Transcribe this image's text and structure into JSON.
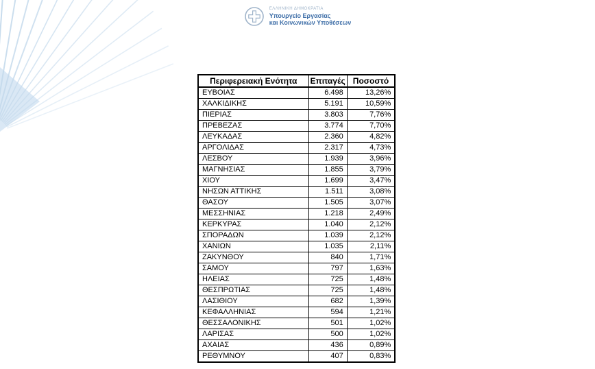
{
  "header": {
    "republic": "ΕΛΛΗΝΙΚΗ ΔΗΜΟΚΡΑΤΙΑ",
    "ministry_line1": "Υπουργείο Εργασίας",
    "ministry_line2": "και Κοινωνικών Υποθέσεων",
    "emblem_icon": "greek-coat-of-arms",
    "colors": {
      "republic_text": "#9fb4ca",
      "ministry_text": "#3f6fa8",
      "emblem": "#9fb4ca"
    }
  },
  "decor": {
    "stripe_color": "#c3d9ec",
    "wedge_color": "#d6e6f4"
  },
  "table": {
    "columns": [
      "Περιφερειακή Ενότητα",
      "Επιταγές",
      "Ποσοστό"
    ],
    "border_color": "#000000",
    "rows": [
      [
        "ΕΥΒΟΙΑΣ",
        "6.498",
        "13,26%"
      ],
      [
        "ΧΑΛΚΙΔΙΚΗΣ",
        "5.191",
        "10,59%"
      ],
      [
        "ΠΙΕΡΙΑΣ",
        "3.803",
        "7,76%"
      ],
      [
        "ΠΡΕΒΕΖΑΣ",
        "3.774",
        "7,70%"
      ],
      [
        "ΛΕΥΚΑΔΑΣ",
        "2.360",
        "4,82%"
      ],
      [
        "ΑΡΓΟΛΙΔΑΣ",
        "2.317",
        "4,73%"
      ],
      [
        "ΛΕΣΒΟΥ",
        "1.939",
        "3,96%"
      ],
      [
        "ΜΑΓΝΗΣΙΑΣ",
        "1.855",
        "3,79%"
      ],
      [
        "ΧΙΟΥ",
        "1.699",
        "3,47%"
      ],
      [
        "ΝΗΣΩΝ ΑΤΤΙΚΗΣ",
        "1.511",
        "3,08%"
      ],
      [
        "ΘΑΣΟΥ",
        "1.505",
        "3,07%"
      ],
      [
        "ΜΕΣΣΗΝΙΑΣ",
        "1.218",
        "2,49%"
      ],
      [
        "ΚΕΡΚΥΡΑΣ",
        "1.040",
        "2,12%"
      ],
      [
        "ΣΠΟΡΑΔΩΝ",
        "1.039",
        "2,12%"
      ],
      [
        "ΧΑΝΙΩΝ",
        "1.035",
        "2,11%"
      ],
      [
        "ΖΑΚΥΝΘΟΥ",
        "840",
        "1,71%"
      ],
      [
        "ΣΑΜΟΥ",
        "797",
        "1,63%"
      ],
      [
        "ΗΛΕΙΑΣ",
        "725",
        "1,48%"
      ],
      [
        "ΘΕΣΠΡΩΤΙΑΣ",
        "725",
        "1,48%"
      ],
      [
        "ΛΑΣΙΘΙΟΥ",
        "682",
        "1,39%"
      ],
      [
        "ΚΕΦΑΛΛΗΝΙΑΣ",
        "594",
        "1,21%"
      ],
      [
        "ΘΕΣΣΑΛΟΝΙΚΗΣ",
        "501",
        "1,02%"
      ],
      [
        "ΛΑΡΙΣΑΣ",
        "500",
        "1,02%"
      ],
      [
        "ΑΧΑΙΑΣ",
        "436",
        "0,89%"
      ],
      [
        "ΡΕΘΥΜΝΟΥ",
        "407",
        "0,83%"
      ]
    ]
  }
}
